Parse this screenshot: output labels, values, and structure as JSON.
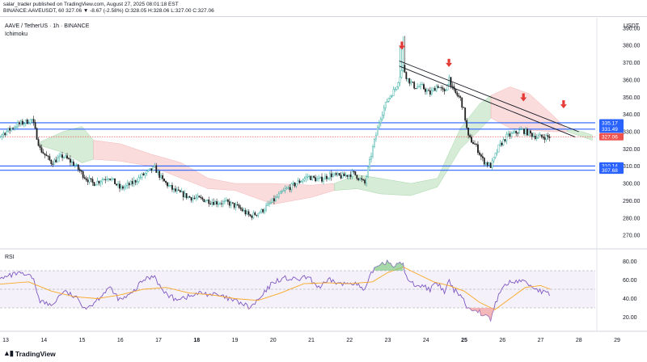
{
  "header": {
    "line1": "salar_trader published on TradingView.com, August 27, 2025 08:01:18 EST",
    "line2": "BINANCE:AAVEUSDT, 60 327.06 ▼ -8.67 (-2.58%) O:328.05 H:328.06 L:327.00 C:327.06"
  },
  "chart_title": "AAVE / TetherUS · 1h · BINANCE",
  "indicator_label": "Ichimoku",
  "currency_label": "USDT",
  "rsi_label": "RSI",
  "footer_logo": "TradingView",
  "colors": {
    "up": "#26a69a",
    "down": "#ef5350",
    "candle_body": "#1f1f1f",
    "kumo_bull": "#c8e6c9",
    "kumo_bear": "#f8d0d0",
    "horizontal_level": "#2962ff",
    "trendline": "#131722",
    "arrow": "#e53935",
    "rsi_line": "#7e57c2",
    "rsi_ma": "#f9a825",
    "rsi_band": "#ede7f6",
    "price_tag_current": "#ef5350",
    "price_tag_level": "#2962ff"
  },
  "chart_data": {
    "type": "candlestick",
    "symbol": "BINANCE:AAVEUSDT",
    "interval": "60",
    "x_axis_labels": [
      "13",
      "14",
      "15",
      "16",
      "17",
      "18",
      "19",
      "20",
      "21",
      "22",
      "23",
      "24",
      "25",
      "26",
      "27",
      "28",
      "29"
    ],
    "bold_x_labels": [
      "18",
      "25"
    ],
    "price_axis": {
      "ticks": [
        270,
        280,
        290,
        300,
        310,
        320,
        330,
        340,
        350,
        360,
        370,
        380,
        390
      ],
      "ylim": [
        264,
        396
      ]
    },
    "price_tags": [
      {
        "label": "335.17",
        "value": 335.17,
        "kind": "level"
      },
      {
        "label": "331.49",
        "value": 331.49,
        "kind": "level"
      },
      {
        "label": "327.06",
        "value": 327.06,
        "kind": "current"
      },
      {
        "label": "310.14",
        "value": 310.14,
        "kind": "level"
      },
      {
        "label": "307.68",
        "value": 307.68,
        "kind": "level"
      }
    ],
    "horizontal_levels": [
      335.17,
      331.49,
      310.14,
      307.68
    ],
    "current_price": 327.06,
    "price_path": [
      [
        12.4,
        323
      ],
      [
        12.8,
        327
      ],
      [
        13.3,
        334
      ],
      [
        13.7,
        337
      ],
      [
        13.9,
        320
      ],
      [
        14.2,
        312
      ],
      [
        14.5,
        316
      ],
      [
        14.8,
        311
      ],
      [
        15.1,
        303
      ],
      [
        15.3,
        300
      ],
      [
        15.7,
        304
      ],
      [
        16.0,
        297
      ],
      [
        16.3,
        300
      ],
      [
        16.6,
        305
      ],
      [
        16.9,
        309
      ],
      [
        17.1,
        302
      ],
      [
        17.4,
        296
      ],
      [
        17.8,
        292
      ],
      [
        18.1,
        291
      ],
      [
        18.5,
        289
      ],
      [
        18.8,
        289
      ],
      [
        19.1,
        286
      ],
      [
        19.4,
        281
      ],
      [
        19.7,
        284
      ],
      [
        20.0,
        290
      ],
      [
        20.3,
        296
      ],
      [
        20.6,
        300
      ],
      [
        20.9,
        304
      ],
      [
        21.2,
        302
      ],
      [
        21.5,
        305
      ],
      [
        21.8,
        304
      ],
      [
        22.1,
        306
      ],
      [
        22.4,
        300
      ],
      [
        22.6,
        320
      ],
      [
        22.8,
        338
      ],
      [
        23.0,
        349
      ],
      [
        23.2,
        355
      ],
      [
        23.4,
        368
      ],
      [
        23.5,
        361
      ],
      [
        23.7,
        356
      ],
      [
        23.9,
        356
      ],
      [
        24.1,
        352
      ],
      [
        24.3,
        357
      ],
      [
        24.5,
        352
      ],
      [
        24.6,
        362
      ],
      [
        24.7,
        354
      ],
      [
        24.9,
        349
      ],
      [
        25.0,
        341
      ],
      [
        25.1,
        327
      ],
      [
        25.3,
        322
      ],
      [
        25.5,
        313
      ],
      [
        25.7,
        310
      ],
      [
        25.9,
        321
      ],
      [
        26.1,
        327
      ],
      [
        26.3,
        329
      ],
      [
        26.5,
        331
      ],
      [
        26.7,
        329
      ],
      [
        26.9,
        327
      ],
      [
        27.1,
        327
      ],
      [
        27.26,
        327.06
      ]
    ],
    "kumo_segments": [
      {
        "bias": "bull",
        "top": [
          [
            13.9,
            324
          ],
          [
            14.5,
            330
          ],
          [
            15.0,
            333
          ],
          [
            15.3,
            325
          ]
        ],
        "bottom": [
          [
            13.9,
            322
          ],
          [
            14.5,
            318
          ],
          [
            15.0,
            312
          ],
          [
            15.3,
            314
          ]
        ]
      },
      {
        "bias": "bear",
        "top": [
          [
            15.3,
            325
          ],
          [
            16.0,
            323
          ],
          [
            16.8,
            317
          ],
          [
            17.6,
            312
          ],
          [
            18.3,
            303
          ],
          [
            19.0,
            300
          ],
          [
            20.0,
            300
          ],
          [
            21.0,
            299
          ],
          [
            21.6,
            300
          ]
        ],
        "bottom": [
          [
            15.3,
            314
          ],
          [
            16.0,
            313
          ],
          [
            16.8,
            310
          ],
          [
            17.6,
            303
          ],
          [
            18.3,
            297
          ],
          [
            19.0,
            296
          ],
          [
            20.0,
            288
          ],
          [
            21.0,
            292
          ],
          [
            21.6,
            296
          ]
        ]
      },
      {
        "bias": "bull",
        "top": [
          [
            21.6,
            300
          ],
          [
            22.2,
            305
          ],
          [
            22.8,
            303
          ],
          [
            23.6,
            300
          ],
          [
            24.3,
            303
          ],
          [
            24.9,
            332
          ],
          [
            25.4,
            346
          ],
          [
            25.7,
            351
          ]
        ],
        "bottom": [
          [
            21.6,
            296
          ],
          [
            22.2,
            297
          ],
          [
            22.8,
            294
          ],
          [
            23.6,
            293
          ],
          [
            24.3,
            298
          ],
          [
            24.9,
            320
          ],
          [
            25.4,
            331
          ],
          [
            25.7,
            338
          ]
        ]
      },
      {
        "bias": "bear",
        "top": [
          [
            25.7,
            351
          ],
          [
            26.2,
            356
          ],
          [
            26.7,
            352
          ],
          [
            27.3,
            340
          ],
          [
            27.7,
            331
          ]
        ],
        "bottom": [
          [
            25.7,
            338
          ],
          [
            26.2,
            332
          ],
          [
            26.7,
            331
          ],
          [
            27.3,
            330
          ],
          [
            27.7,
            330
          ]
        ]
      },
      {
        "bias": "bull",
        "top": [
          [
            27.7,
            331
          ],
          [
            28.1,
            330
          ],
          [
            28.35,
            328
          ]
        ],
        "bottom": [
          [
            27.7,
            330
          ],
          [
            28.1,
            327
          ],
          [
            28.35,
            325
          ]
        ]
      }
    ],
    "trendlines": [
      {
        "from": [
          23.3,
          371
        ],
        "to": [
          28.0,
          330
        ]
      },
      {
        "from": [
          23.3,
          368
        ],
        "to": [
          27.9,
          327
        ]
      }
    ],
    "arrow_markers": [
      [
        23.37,
        378
      ],
      [
        24.6,
        368
      ],
      [
        26.55,
        348
      ],
      [
        27.6,
        344
      ]
    ],
    "rsi": {
      "ticks": [
        20,
        40,
        60,
        80
      ],
      "ylim": [
        10,
        90
      ],
      "band": [
        30,
        70
      ],
      "mid": 50,
      "path": [
        [
          12.4,
          55
        ],
        [
          12.8,
          60
        ],
        [
          13.3,
          67
        ],
        [
          13.7,
          63
        ],
        [
          13.9,
          38
        ],
        [
          14.2,
          32
        ],
        [
          14.5,
          48
        ],
        [
          14.8,
          42
        ],
        [
          15.1,
          30
        ],
        [
          15.3,
          35
        ],
        [
          15.7,
          52
        ],
        [
          16.0,
          38
        ],
        [
          16.3,
          45
        ],
        [
          16.6,
          60
        ],
        [
          16.9,
          65
        ],
        [
          17.1,
          48
        ],
        [
          17.4,
          40
        ],
        [
          17.8,
          42
        ],
        [
          18.1,
          46
        ],
        [
          18.5,
          44
        ],
        [
          18.8,
          40
        ],
        [
          19.1,
          36
        ],
        [
          19.4,
          30
        ],
        [
          19.7,
          42
        ],
        [
          20.0,
          58
        ],
        [
          20.3,
          62
        ],
        [
          20.6,
          60
        ],
        [
          20.9,
          63
        ],
        [
          21.2,
          52
        ],
        [
          21.5,
          60
        ],
        [
          21.8,
          55
        ],
        [
          22.1,
          58
        ],
        [
          22.4,
          48
        ],
        [
          22.6,
          70
        ],
        [
          22.8,
          78
        ],
        [
          23.0,
          80
        ],
        [
          23.2,
          75
        ],
        [
          23.4,
          78
        ],
        [
          23.5,
          60
        ],
        [
          23.7,
          55
        ],
        [
          23.9,
          54
        ],
        [
          24.1,
          50
        ],
        [
          24.3,
          56
        ],
        [
          24.5,
          46
        ],
        [
          24.6,
          60
        ],
        [
          24.7,
          50
        ],
        [
          24.9,
          45
        ],
        [
          25.0,
          38
        ],
        [
          25.1,
          28
        ],
        [
          25.3,
          30
        ],
        [
          25.5,
          22
        ],
        [
          25.7,
          18
        ],
        [
          25.9,
          45
        ],
        [
          26.1,
          56
        ],
        [
          26.3,
          58
        ],
        [
          26.5,
          60
        ],
        [
          26.7,
          55
        ],
        [
          26.9,
          50
        ],
        [
          27.1,
          46
        ],
        [
          27.26,
          44
        ]
      ],
      "ma_path": [
        [
          12.4,
          54
        ],
        [
          13.0,
          56
        ],
        [
          13.6,
          58
        ],
        [
          14.2,
          48
        ],
        [
          14.8,
          42
        ],
        [
          15.4,
          40
        ],
        [
          16.0,
          44
        ],
        [
          16.6,
          50
        ],
        [
          17.2,
          52
        ],
        [
          17.8,
          46
        ],
        [
          18.4,
          44
        ],
        [
          19.0,
          40
        ],
        [
          19.6,
          38
        ],
        [
          20.2,
          46
        ],
        [
          20.8,
          56
        ],
        [
          21.4,
          57
        ],
        [
          22.0,
          56
        ],
        [
          22.6,
          58
        ],
        [
          23.0,
          68
        ],
        [
          23.4,
          74
        ],
        [
          23.8,
          66
        ],
        [
          24.2,
          58
        ],
        [
          24.6,
          54
        ],
        [
          25.0,
          48
        ],
        [
          25.4,
          36
        ],
        [
          25.8,
          28
        ],
        [
          26.2,
          40
        ],
        [
          26.6,
          52
        ],
        [
          27.0,
          54
        ],
        [
          27.26,
          50
        ]
      ]
    }
  }
}
